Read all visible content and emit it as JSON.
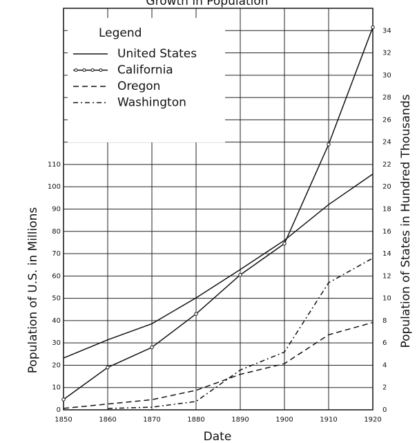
{
  "chart_data": {
    "type": "line",
    "title": "Growth in Population",
    "x_label": "Date",
    "y_label": "Population of U.S. in Millions",
    "y2_label": "Population of States in Hundred Thousands",
    "legend_title": "Legend",
    "legend": "top-left",
    "grid": true,
    "x": [
      1850,
      1860,
      1870,
      1880,
      1890,
      1900,
      1910,
      1920
    ],
    "xlim": [
      1850,
      1920
    ],
    "xticks": [
      1850,
      1860,
      1870,
      1880,
      1890,
      1900,
      1910,
      1920
    ],
    "ylim": [
      0,
      180
    ],
    "yticks": [
      0,
      10,
      20,
      30,
      40,
      50,
      60,
      70,
      80,
      90,
      100,
      110
    ],
    "y2lim": [
      0,
      36
    ],
    "y2ticks": [
      0,
      2,
      4,
      6,
      8,
      10,
      12,
      14,
      16,
      18,
      20,
      22,
      24,
      26,
      28,
      30,
      32,
      34
    ],
    "series": [
      {
        "name": "United States",
        "color": "#111111",
        "style": "solid",
        "values": [
          23.2,
          31.4,
          38.6,
          50.2,
          62.9,
          76.0,
          92.0,
          105.7
        ]
      },
      {
        "name": "California",
        "color": "#111111",
        "style": "marker",
        "axis": "y2",
        "values": [
          0.93,
          3.8,
          5.6,
          8.6,
          12.1,
          14.9,
          23.8,
          34.3
        ]
      },
      {
        "name": "Oregon",
        "color": "#111111",
        "style": "dashed",
        "axis": "y2",
        "values": [
          0.13,
          0.52,
          0.91,
          1.75,
          3.18,
          4.14,
          6.73,
          7.83
        ]
      },
      {
        "name": "Washington",
        "color": "#111111",
        "style": "dashdot",
        "axis": "y2",
        "values": [
          null,
          0.12,
          0.24,
          0.75,
          3.57,
          5.18,
          11.4,
          13.6
        ]
      }
    ]
  }
}
